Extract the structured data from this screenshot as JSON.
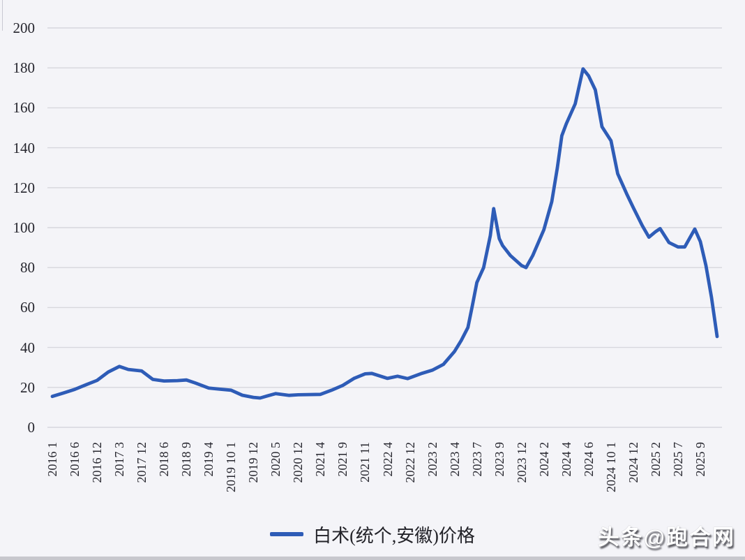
{
  "chart": {
    "legend": {
      "label": "白术(统个,安徽)价格"
    },
    "watermark": {
      "text": "头条@跑合网"
    },
    "colors": {
      "line": "#2e5cb7",
      "grid": "#d7d7dd",
      "tick_text": "#26262e",
      "background": "#f4f4f8"
    }
  },
  "chart_data": {
    "type": "line",
    "title": "",
    "xlabel": "",
    "ylabel": "",
    "ylim": [
      0,
      200
    ],
    "ytick_step": 20,
    "yticks": [
      0,
      20,
      40,
      60,
      80,
      100,
      120,
      140,
      160,
      180,
      200
    ],
    "grid": "horizontal",
    "legend_position": "bottom",
    "categories": [
      "2016 1",
      "2016 6",
      "2016 12",
      "2017 3",
      "2017 12",
      "2018 6",
      "2018 9",
      "2019 4",
      "2019 10 1",
      "2019 12",
      "2020 5",
      "2020 12",
      "2021 4",
      "2021 9",
      "2021 11",
      "2022 4",
      "2022 12",
      "2023 2",
      "2023 4",
      "2023 7",
      "2023 9",
      "2023 12",
      "2024 2",
      "2024 4",
      "2024 6",
      "2024 10 1",
      "2024 12",
      "2025 2",
      "2025 7",
      "2025 9"
    ],
    "series": [
      {
        "name": "白术(统个,安徽)价格",
        "color": "#2e5cb7",
        "values_at_categories": [
          15.5,
          19,
          23.5,
          30.5,
          28.2,
          23.2,
          23.7,
          19.7,
          18.6,
          15,
          16.9,
          16.3,
          16.5,
          21,
          26.8,
          24.5,
          24.5,
          28.6,
          38,
          72.5,
          94.5,
          81,
          99,
          152,
          176,
          143.5,
          110,
          98,
          90.3,
          93
        ],
        "points": [
          [
            0,
            15.5
          ],
          [
            0.5,
            17.2
          ],
          [
            1,
            19
          ],
          [
            1.5,
            21.3
          ],
          [
            2,
            23.5
          ],
          [
            2.5,
            27.7
          ],
          [
            3,
            30.5
          ],
          [
            3.4,
            29
          ],
          [
            4,
            28.2
          ],
          [
            4.5,
            24
          ],
          [
            5,
            23.2
          ],
          [
            5.6,
            23.4
          ],
          [
            6,
            23.7
          ],
          [
            6.4,
            22.2
          ],
          [
            7,
            19.7
          ],
          [
            7.5,
            19.1
          ],
          [
            8,
            18.6
          ],
          [
            8.5,
            16.1
          ],
          [
            9,
            15
          ],
          [
            9.3,
            14.7
          ],
          [
            9.8,
            16.3
          ],
          [
            10,
            16.9
          ],
          [
            10.6,
            16
          ],
          [
            11,
            16.3
          ],
          [
            12,
            16.5
          ],
          [
            12.5,
            18.6
          ],
          [
            13,
            21
          ],
          [
            13.5,
            24.5
          ],
          [
            14,
            26.8
          ],
          [
            14.3,
            27
          ],
          [
            15,
            24.5
          ],
          [
            15.45,
            25.6
          ],
          [
            15.9,
            24.4
          ],
          [
            16.5,
            26.9
          ],
          [
            17,
            28.6
          ],
          [
            17.5,
            31.5
          ],
          [
            18,
            38
          ],
          [
            18.3,
            43.5
          ],
          [
            18.6,
            50
          ],
          [
            18.8,
            61
          ],
          [
            19,
            72.5
          ],
          [
            19.3,
            80
          ],
          [
            19.6,
            96
          ],
          [
            19.75,
            109.5
          ],
          [
            20,
            94.5
          ],
          [
            20.15,
            91
          ],
          [
            20.5,
            86
          ],
          [
            21,
            81
          ],
          [
            21.2,
            80
          ],
          [
            21.5,
            86
          ],
          [
            22,
            99
          ],
          [
            22.35,
            113
          ],
          [
            22.6,
            130
          ],
          [
            22.8,
            146
          ],
          [
            23,
            152
          ],
          [
            23.4,
            162
          ],
          [
            23.75,
            179.5
          ],
          [
            24,
            176
          ],
          [
            24.3,
            169
          ],
          [
            24.6,
            150.5
          ],
          [
            25,
            143.5
          ],
          [
            25.3,
            127
          ],
          [
            25.7,
            117
          ],
          [
            26,
            110
          ],
          [
            26.4,
            101
          ],
          [
            26.7,
            95.2
          ],
          [
            27,
            98
          ],
          [
            27.2,
            99.5
          ],
          [
            27.6,
            92.5
          ],
          [
            28,
            90.3
          ],
          [
            28.3,
            90.3
          ],
          [
            28.75,
            99.3
          ],
          [
            29,
            93
          ],
          [
            29.25,
            81
          ],
          [
            29.5,
            65
          ],
          [
            29.75,
            45.5
          ]
        ]
      }
    ]
  }
}
